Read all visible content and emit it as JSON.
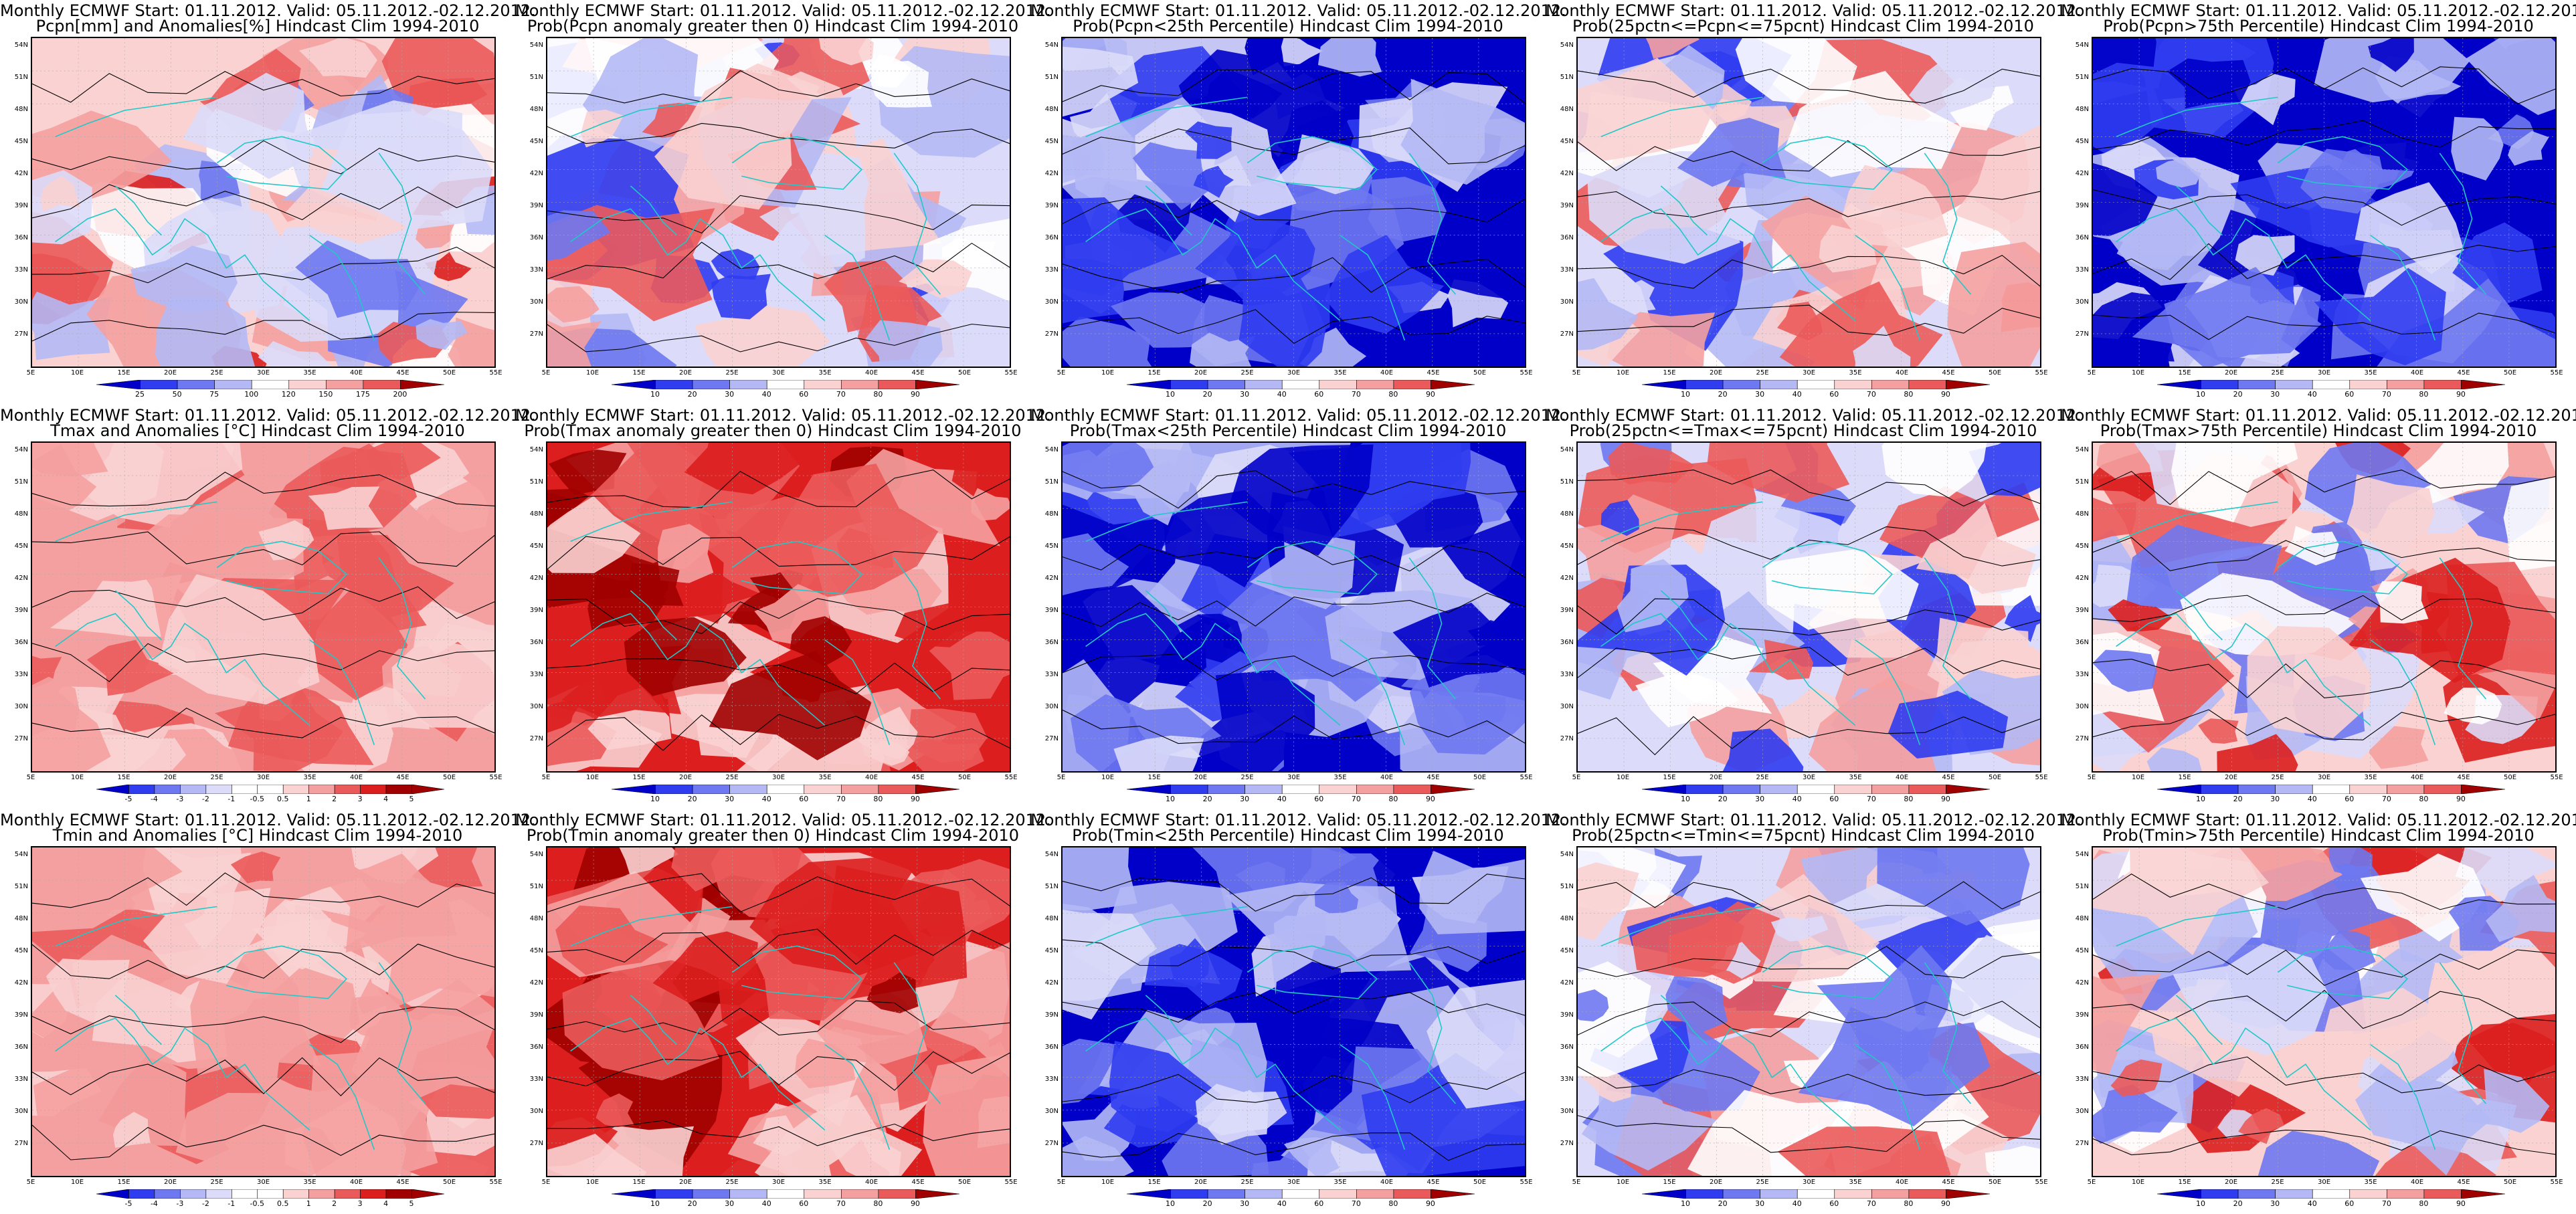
{
  "figure": {
    "title_line1": "Monthly ECMWF Start: 01.11.2012. Valid: 05.11.2012.-02.12.2012.",
    "lat_ticks": [
      "54N",
      "51N",
      "48N",
      "45N",
      "42N",
      "39N",
      "36N",
      "33N",
      "30N",
      "27N"
    ],
    "lon_ticks": [
      "5E",
      "10E",
      "15E",
      "20E",
      "25E",
      "30E",
      "35E",
      "40E",
      "45E",
      "50E",
      "55E"
    ],
    "prob_levels": [
      "10",
      "20",
      "30",
      "40",
      "60",
      "70",
      "80",
      "90"
    ],
    "colors": {
      "deep_blue": "#0000c8",
      "blue": "#2f3cf0",
      "mid_blue": "#6e78f0",
      "light_blue": "#b4b9f5",
      "pale_blue": "#dcdcfa",
      "white": "#ffffff",
      "pale_red": "#fad2d2",
      "light_red": "#f5a0a0",
      "red": "#eb5a5a",
      "strong_red": "#dc1e1e",
      "dark_red": "#a00000",
      "coast": "#20c8c8",
      "contour": "#000000"
    }
  },
  "panels": [
    {
      "id": "pcpn-anom",
      "title2": "Pcpn[mm] and Anomalies[%] Hindcast Clim 1994-2010",
      "levels": [
        "25",
        "50",
        "75",
        "100",
        "120",
        "150",
        "175",
        "200"
      ],
      "scheme": "anom"
    },
    {
      "id": "pcpn-gt0",
      "title2": "Prob(Pcpn anomaly greater then 0) Hindcast Clim 1994-2010",
      "levels": [
        "10",
        "20",
        "30",
        "40",
        "60",
        "70",
        "80",
        "90"
      ],
      "scheme": "mixed"
    },
    {
      "id": "pcpn-lt25",
      "title2": "Prob(Pcpn<25th Percentile) Hindcast Clim 1994-2010",
      "levels": [
        "10",
        "20",
        "30",
        "40",
        "60",
        "70",
        "80",
        "90"
      ],
      "scheme": "blue"
    },
    {
      "id": "pcpn-mid",
      "title2": "Prob(25pctn<=Pcpn<=75pcnt) Hindcast Clim 1994-2010",
      "levels": [
        "10",
        "20",
        "30",
        "40",
        "60",
        "70",
        "80",
        "90"
      ],
      "scheme": "mixed"
    },
    {
      "id": "pcpn-gt75",
      "title2": "Prob(Pcpn>75th Percentile) Hindcast Clim 1994-2010",
      "levels": [
        "10",
        "20",
        "30",
        "40",
        "60",
        "70",
        "80",
        "90"
      ],
      "scheme": "blue"
    },
    {
      "id": "tmax-anom",
      "title2": "Tmax and Anomalies [°C] Hindcast Clim 1994-2010",
      "levels": [
        "-5",
        "-4",
        "-3",
        "-2",
        "-1",
        "-0.5",
        "0.5",
        "1",
        "2",
        "3",
        "4",
        "5"
      ],
      "scheme": "pink"
    },
    {
      "id": "tmax-gt0",
      "title2": "Prob(Tmax anomaly greater then 0) Hindcast Clim 1994-2010",
      "levels": [
        "10",
        "20",
        "30",
        "40",
        "60",
        "70",
        "80",
        "90"
      ],
      "scheme": "red"
    },
    {
      "id": "tmax-lt25",
      "title2": "Prob(Tmax<25th Percentile) Hindcast Clim 1994-2010",
      "levels": [
        "10",
        "20",
        "30",
        "40",
        "60",
        "70",
        "80",
        "90"
      ],
      "scheme": "blue"
    },
    {
      "id": "tmax-mid",
      "title2": "Prob(25pctn<=Tmax<=75pcnt) Hindcast Clim 1994-2010",
      "levels": [
        "10",
        "20",
        "30",
        "40",
        "60",
        "70",
        "80",
        "90"
      ],
      "scheme": "mixed"
    },
    {
      "id": "tmax-gt75",
      "title2": "Prob(Tmax>75th Percentile) Hindcast Clim 1994-2010",
      "levels": [
        "10",
        "20",
        "30",
        "40",
        "60",
        "70",
        "80",
        "90"
      ],
      "scheme": "redmix"
    },
    {
      "id": "tmin-anom",
      "title2": "Tmin and Anomalies [°C] Hindcast Clim 1994-2010",
      "levels": [
        "-5",
        "-4",
        "-3",
        "-2",
        "-1",
        "-0.5",
        "0.5",
        "1",
        "2",
        "3",
        "4",
        "5"
      ],
      "scheme": "pink"
    },
    {
      "id": "tmin-gt0",
      "title2": "Prob(Tmin anomaly greater then 0) Hindcast Clim 1994-2010",
      "levels": [
        "10",
        "20",
        "30",
        "40",
        "60",
        "70",
        "80",
        "90"
      ],
      "scheme": "red"
    },
    {
      "id": "tmin-lt25",
      "title2": "Prob(Tmin<25th Percentile) Hindcast Clim 1994-2010",
      "levels": [
        "10",
        "20",
        "30",
        "40",
        "60",
        "70",
        "80",
        "90"
      ],
      "scheme": "blue"
    },
    {
      "id": "tmin-mid",
      "title2": "Prob(25pctn<=Tmin<=75pcnt) Hindcast Clim 1994-2010",
      "levels": [
        "10",
        "20",
        "30",
        "40",
        "60",
        "70",
        "80",
        "90"
      ],
      "scheme": "mixed"
    },
    {
      "id": "tmin-gt75",
      "title2": "Prob(Tmin>75th Percentile) Hindcast Clim 1994-2010",
      "levels": [
        "10",
        "20",
        "30",
        "40",
        "60",
        "70",
        "80",
        "90"
      ],
      "scheme": "redmix"
    }
  ]
}
